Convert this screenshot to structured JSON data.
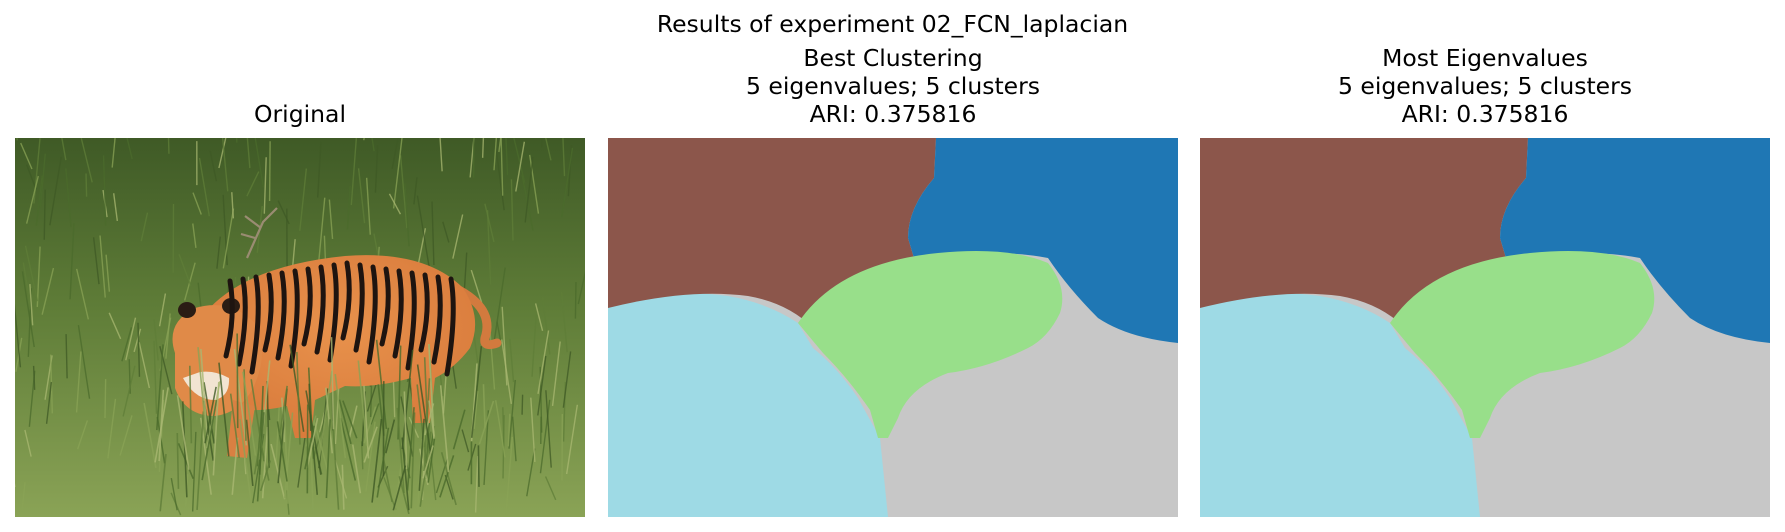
{
  "figure": {
    "suptitle": "Results of experiment 02_FCN_laplacian"
  },
  "panels": [
    {
      "title_lines": [
        "Original"
      ],
      "image": "photo of a tiger walking through tall green grass"
    },
    {
      "title_lines": [
        "Best Clustering",
        "5 eigenvalues; 5 clusters",
        "ARI: 0.375816"
      ],
      "image": "segmentation map"
    },
    {
      "title_lines": [
        "Most Eigenvalues",
        "5 eigenvalues; 5 clusters",
        "ARI: 0.375816"
      ],
      "image": "segmentation map"
    }
  ],
  "colors": {
    "grass_dark": "#3f5a26",
    "grass_mid": "#5f7d38",
    "grass_light": "#8aa356",
    "tiger_orange": "#d97b3c",
    "tiger_stripe": "#1e1410",
    "seg_brown": "#8c564b",
    "seg_blue": "#1f77b4",
    "seg_green": "#98df8a",
    "seg_cyan": "#9edae5",
    "seg_gray": "#c7c7c7"
  }
}
